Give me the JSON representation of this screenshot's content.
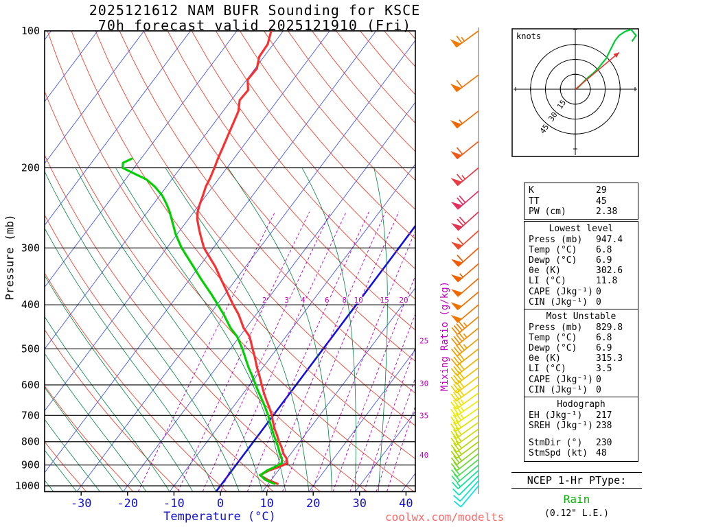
{
  "title": {
    "line1": "2025121612 NAM BUFR Sounding for KSCE",
    "line2": "70h forecast valid 2025121910 (Fri)"
  },
  "axes": {
    "pressure_label": "Pressure (mb)",
    "temperature_label": "Temperature (°C)",
    "mixing_ratio_label": "Mixing Ratio (g/kg)",
    "pressure_ticks": [
      100,
      200,
      300,
      400,
      500,
      600,
      700,
      800,
      900,
      1000
    ],
    "temp_ticks": [
      -30,
      -20,
      -10,
      0,
      10,
      20,
      30,
      40
    ]
  },
  "watermark": "coolwx.com/modelts",
  "ptype": {
    "heading": "NCEP 1-Hr PType:",
    "value": "Rain",
    "detail": "(0.12\" L.E.)",
    "value_color": "#00b400"
  },
  "stats": {
    "indices": {
      "rows": [
        [
          "K",
          "29"
        ],
        [
          "TT",
          "45"
        ],
        [
          "PW (cm)",
          "2.38"
        ]
      ]
    },
    "sections": [
      {
        "header": "Lowest level",
        "rows": [
          [
            "Press (mb)",
            "947.4"
          ],
          [
            "Temp (°C)",
            "6.8"
          ],
          [
            "Dewp (°C)",
            "6.9"
          ],
          [
            "θe (K)",
            "302.6"
          ],
          [
            "LI (°C)",
            "11.8"
          ],
          [
            "CAPE (Jkg⁻¹)",
            "0"
          ],
          [
            "CIN (Jkg⁻¹)",
            "0"
          ]
        ]
      },
      {
        "header": "Most Unstable",
        "rows": [
          [
            "Press (mb)",
            "829.8"
          ],
          [
            "Temp (°C)",
            "6.8"
          ],
          [
            "Dewp (°C)",
            "6.9"
          ],
          [
            "θe (K)",
            "315.3"
          ],
          [
            "LI (°C)",
            "3.5"
          ],
          [
            "CAPE (Jkg⁻¹)",
            "0"
          ],
          [
            "CIN (Jkg⁻¹)",
            "0"
          ]
        ]
      },
      {
        "header": "Hodograph",
        "rows": [
          [
            "EH (Jkg⁻¹)",
            "217"
          ],
          [
            "SREH (Jkg⁻¹)",
            "238"
          ],
          [
            "StmDir (°)",
            "230"
          ],
          [
            "StmSpd (kt)",
            "48"
          ]
        ],
        "gap_after": 1
      }
    ]
  },
  "hodograph_panel": {
    "unit_label": "knots",
    "ring_values": [
      15,
      30,
      45
    ],
    "trace_uv": [
      [
        2,
        1
      ],
      [
        5,
        4
      ],
      [
        9,
        8
      ],
      [
        13,
        12
      ],
      [
        18,
        16
      ],
      [
        23,
        21
      ],
      [
        27,
        26
      ],
      [
        31,
        31
      ],
      [
        34,
        37
      ],
      [
        37,
        43
      ],
      [
        40,
        49
      ],
      [
        44,
        54
      ],
      [
        50,
        58
      ],
      [
        56,
        60
      ],
      [
        61,
        54
      ],
      [
        57,
        48
      ]
    ],
    "storm_motion": {
      "dir": 230,
      "spd": 48
    }
  },
  "chart_data": {
    "type": "line",
    "subtype": "skew-t-log-p-sounding",
    "title": "2025121612 NAM BUFR Sounding for KSCE, 70h forecast valid 2025121910 (Fri)",
    "pressure_range_mb": [
      100,
      1030
    ],
    "temp_range_at_1000mb_c": [
      -38,
      42
    ],
    "isotherms_c": {
      "min": -110,
      "max": 40,
      "step": 10
    },
    "dry_adiabats_c": {
      "min": -40,
      "max": 190,
      "step": 10
    },
    "moist_adiabats_c": [
      -35,
      -30,
      -25,
      -20,
      -15,
      -10,
      -5,
      0,
      5,
      10,
      15,
      20,
      25,
      30,
      35
    ],
    "mixing_ratio_lines_gkg": [
      1,
      2,
      3,
      4,
      6,
      8,
      10,
      15,
      20,
      25,
      30,
      35,
      40
    ],
    "mixing_ratio_row_labels": [
      2,
      3,
      4,
      6,
      8,
      10,
      15,
      20
    ],
    "mixing_ratio_right_labels": [
      {
        "value": 25,
        "p": 480
      },
      {
        "value": 30,
        "p": 595
      },
      {
        "value": 35,
        "p": 700
      },
      {
        "value": 40,
        "p": 855
      }
    ],
    "sounding": {
      "temperature_p_t": [
        [
          990,
          12.0
        ],
        [
          970,
          9.2
        ],
        [
          947.4,
          6.8
        ],
        [
          925,
          8.0
        ],
        [
          910,
          9.5
        ],
        [
          892,
          10.8
        ],
        [
          870,
          9.8
        ],
        [
          850,
          8.4
        ],
        [
          820,
          6.8
        ],
        [
          800,
          5.5
        ],
        [
          770,
          3.8
        ],
        [
          750,
          2.5
        ],
        [
          720,
          0.8
        ],
        [
          700,
          -0.3
        ],
        [
          670,
          -2.3
        ],
        [
          650,
          -3.8
        ],
        [
          620,
          -6.0
        ],
        [
          600,
          -7.4
        ],
        [
          570,
          -9.6
        ],
        [
          550,
          -11.2
        ],
        [
          520,
          -13.5
        ],
        [
          500,
          -15.2
        ],
        [
          470,
          -17.8
        ],
        [
          450,
          -20.5
        ],
        [
          420,
          -23.8
        ],
        [
          400,
          -26.5
        ],
        [
          380,
          -29.2
        ],
        [
          350,
          -33.5
        ],
        [
          330,
          -36.5
        ],
        [
          300,
          -42.0
        ],
        [
          280,
          -45.0
        ],
        [
          270,
          -46.5
        ],
        [
          260,
          -48.0
        ],
        [
          250,
          -49.2
        ],
        [
          240,
          -50.0
        ],
        [
          230,
          -50.7
        ],
        [
          220,
          -51.5
        ],
        [
          210,
          -52.0
        ],
        [
          200,
          -52.7
        ],
        [
          190,
          -53.5
        ],
        [
          180,
          -54.2
        ],
        [
          170,
          -55.0
        ],
        [
          160,
          -55.8
        ],
        [
          150,
          -56.7
        ],
        [
          142,
          -58.2
        ],
        [
          135,
          -58.0
        ],
        [
          128,
          -59.8
        ],
        [
          121,
          -59.6
        ],
        [
          114,
          -61.0
        ],
        [
          107,
          -61.2
        ],
        [
          100,
          -62.6
        ]
      ],
      "dewpoint_p_t": [
        [
          990,
          11.3
        ],
        [
          970,
          8.7
        ],
        [
          947.4,
          6.9
        ],
        [
          925,
          7.6
        ],
        [
          910,
          8.6
        ],
        [
          892,
          9.6
        ],
        [
          870,
          8.8
        ],
        [
          850,
          7.6
        ],
        [
          820,
          6.1
        ],
        [
          800,
          4.9
        ],
        [
          770,
          3.1
        ],
        [
          750,
          1.9
        ],
        [
          720,
          0.1
        ],
        [
          700,
          -1.1
        ],
        [
          670,
          -3.2
        ],
        [
          650,
          -4.7
        ],
        [
          620,
          -7.1
        ],
        [
          600,
          -8.7
        ],
        [
          570,
          -11.2
        ],
        [
          550,
          -13.0
        ],
        [
          520,
          -15.6
        ],
        [
          500,
          -17.4
        ],
        [
          470,
          -20.5
        ],
        [
          450,
          -23.3
        ],
        [
          420,
          -27.0
        ],
        [
          400,
          -29.8
        ],
        [
          380,
          -32.8
        ],
        [
          350,
          -37.8
        ],
        [
          330,
          -41.2
        ],
        [
          300,
          -46.8
        ],
        [
          280,
          -50.3
        ],
        [
          260,
          -53.5
        ],
        [
          250,
          -55.2
        ],
        [
          240,
          -57.2
        ],
        [
          230,
          -59.5
        ],
        [
          220,
          -62.5
        ],
        [
          212,
          -65.5
        ],
        [
          206,
          -69.0
        ],
        [
          200,
          -72.5
        ],
        [
          195,
          -73.2
        ],
        [
          191,
          -72.0
        ]
      ]
    },
    "wind_barbs_format": "[pressure_mb, speed_kt, dir_from_deg, color]",
    "wind_barbs": [
      [
        1000,
        8,
        220,
        "#00e4e4"
      ],
      [
        975,
        10,
        222,
        "#00e6cf"
      ],
      [
        950,
        12,
        225,
        "#00e6b4"
      ],
      [
        925,
        15,
        228,
        "#0ee493"
      ],
      [
        900,
        18,
        230,
        "#2ae06e"
      ],
      [
        875,
        20,
        231,
        "#4cdc4c"
      ],
      [
        850,
        22,
        232,
        "#6cd82e"
      ],
      [
        825,
        25,
        232,
        "#8cd414"
      ],
      [
        800,
        27,
        233,
        "#a6d400"
      ],
      [
        775,
        28,
        233,
        "#bad800"
      ],
      [
        750,
        30,
        234,
        "#cadc00"
      ],
      [
        725,
        30,
        234,
        "#d6e000"
      ],
      [
        700,
        32,
        235,
        "#e0e400"
      ],
      [
        675,
        33,
        235,
        "#e8ea00"
      ],
      [
        650,
        35,
        235,
        "#eeee00"
      ],
      [
        625,
        35,
        234,
        "#f0e400"
      ],
      [
        600,
        38,
        234,
        "#f0d800"
      ],
      [
        575,
        38,
        233,
        "#f0cc00"
      ],
      [
        550,
        40,
        233,
        "#f0c000"
      ],
      [
        525,
        40,
        232,
        "#f0b400"
      ],
      [
        500,
        42,
        232,
        "#f0a800"
      ],
      [
        475,
        43,
        231,
        "#f09c00"
      ],
      [
        450,
        45,
        231,
        "#f09000"
      ],
      [
        425,
        45,
        230,
        "#f08400"
      ],
      [
        400,
        48,
        230,
        "#f07a00"
      ],
      [
        375,
        50,
        230,
        "#f07200"
      ],
      [
        350,
        52,
        229,
        "#f06a00"
      ],
      [
        325,
        55,
        229,
        "#f06200"
      ],
      [
        300,
        58,
        228,
        "#f05a00"
      ],
      [
        275,
        62,
        228,
        "#ec4a28"
      ],
      [
        250,
        68,
        228,
        "#e43252"
      ],
      [
        225,
        70,
        229,
        "#e22e60"
      ],
      [
        200,
        66,
        230,
        "#e63c44"
      ],
      [
        175,
        60,
        231,
        "#ee5a14"
      ],
      [
        150,
        55,
        232,
        "#f06800"
      ],
      [
        125,
        60,
        233,
        "#f07200"
      ],
      [
        100,
        65,
        234,
        "#f07a00"
      ]
    ],
    "colors": {
      "isotherm": "#4455ee",
      "isotherm_zero": "#1010e0",
      "dry_adiabat": "#ee4433",
      "moist_adiabat": "#008040",
      "mixing": "#bb00bb",
      "temperature_profile": "#f83030",
      "dewpoint_profile": "#00cf00",
      "pressure_line": "#000000",
      "temp_axis": "#1111cc",
      "hodo_trace": "#00cc33",
      "hodo_arrow": "#e83030"
    }
  }
}
